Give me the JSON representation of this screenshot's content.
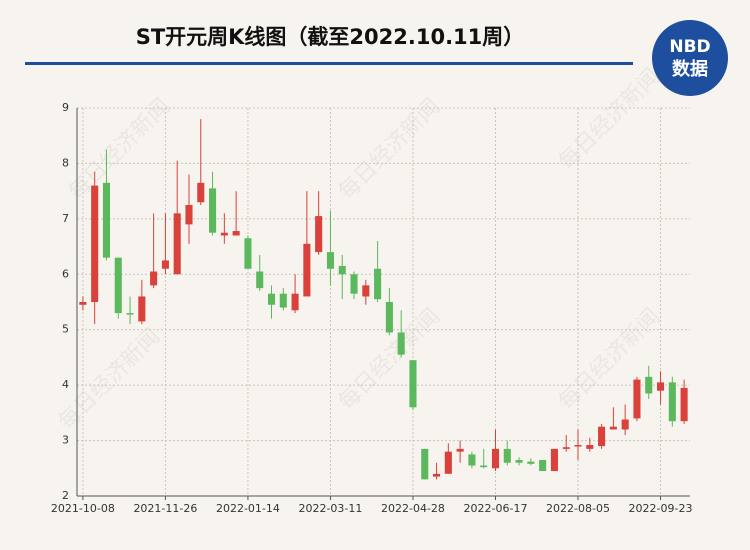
{
  "chart_data": {
    "type": "candlestick",
    "title": "ST开元周K线图（截至2022.10.11周）",
    "watermark": "每日经济新闻",
    "logo": {
      "brand": "NBD",
      "caption": "数据"
    },
    "categories": [
      "2021-10-08",
      null,
      null,
      null,
      null,
      null,
      null,
      "2021-11-26",
      null,
      null,
      null,
      null,
      null,
      null,
      "2022-01-14",
      null,
      null,
      null,
      null,
      null,
      null,
      "2022-03-11",
      null,
      null,
      null,
      null,
      null,
      null,
      "2022-04-28",
      null,
      null,
      null,
      null,
      null,
      null,
      "2022-06-17",
      null,
      null,
      null,
      null,
      null,
      null,
      "2022-08-05",
      null,
      null,
      null,
      null,
      null,
      null,
      "2022-09-23",
      null,
      null
    ],
    "open": [
      5.45,
      5.5,
      7.65,
      6.3,
      5.3,
      5.15,
      5.8,
      6.1,
      6.0,
      6.9,
      7.3,
      7.55,
      6.7,
      6.7,
      6.65,
      6.05,
      5.65,
      5.65,
      5.35,
      5.6,
      6.4,
      6.4,
      6.15,
      6.0,
      5.6,
      6.1,
      5.5,
      4.95,
      4.45,
      2.85,
      2.35,
      2.4,
      2.8,
      2.75,
      2.55,
      2.5,
      2.85,
      2.65,
      2.62,
      2.65,
      2.45,
      2.85,
      2.9,
      2.85,
      2.9,
      3.2,
      3.2,
      3.4,
      4.15,
      3.9,
      4.05,
      3.35
    ],
    "close": [
      5.5,
      7.6,
      6.3,
      5.3,
      5.28,
      5.6,
      6.05,
      6.25,
      7.1,
      7.25,
      7.65,
      6.75,
      6.75,
      6.78,
      6.1,
      5.75,
      5.45,
      5.4,
      5.65,
      6.55,
      7.05,
      6.1,
      6.0,
      5.65,
      5.8,
      5.55,
      4.95,
      4.55,
      3.6,
      2.3,
      2.4,
      2.8,
      2.85,
      2.55,
      2.52,
      2.85,
      2.6,
      2.6,
      2.58,
      2.45,
      2.85,
      2.88,
      2.92,
      2.92,
      3.25,
      3.25,
      3.38,
      4.1,
      3.85,
      4.05,
      3.35,
      3.95
    ],
    "high": [
      5.6,
      7.85,
      8.25,
      6.3,
      5.6,
      5.9,
      7.1,
      7.1,
      8.05,
      7.8,
      8.8,
      7.85,
      7.1,
      7.5,
      6.7,
      6.35,
      5.8,
      5.75,
      6.0,
      7.5,
      7.5,
      7.15,
      6.35,
      6.05,
      5.9,
      6.6,
      5.75,
      5.35,
      4.45,
      2.85,
      2.6,
      2.95,
      3.0,
      2.8,
      2.85,
      3.2,
      3.0,
      2.7,
      2.68,
      2.65,
      2.85,
      3.1,
      3.2,
      3.05,
      3.3,
      3.6,
      3.65,
      4.15,
      4.35,
      4.25,
      4.15,
      4.1
    ],
    "low": [
      5.35,
      5.1,
      6.25,
      5.2,
      5.1,
      5.1,
      5.75,
      6.0,
      6.0,
      6.55,
      7.25,
      6.7,
      6.55,
      6.7,
      6.1,
      5.7,
      5.2,
      5.35,
      5.3,
      5.6,
      6.35,
      5.8,
      5.55,
      5.55,
      5.45,
      5.5,
      4.9,
      4.5,
      3.55,
      2.3,
      2.3,
      2.4,
      2.6,
      2.5,
      2.5,
      2.45,
      2.55,
      2.55,
      2.55,
      2.45,
      2.45,
      2.8,
      2.65,
      2.8,
      2.85,
      3.2,
      3.1,
      3.35,
      3.75,
      3.65,
      3.25,
      3.3
    ],
    "up_color": "#d9413a",
    "down_color": "#5cb85c",
    "ylim": [
      2,
      9
    ],
    "yticks": [
      2,
      3,
      4,
      5,
      6,
      7,
      8,
      9
    ],
    "grid": true
  }
}
